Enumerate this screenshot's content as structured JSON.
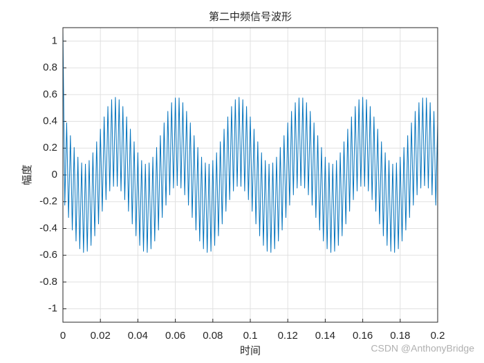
{
  "chart_data": {
    "type": "line",
    "title": "第二中频信号波形",
    "xlabel": "时间",
    "ylabel": "幅度",
    "watermark": "CSDN @AnthonyBridge",
    "grid": true,
    "xlim": [
      0,
      0.2
    ],
    "ylim": [
      -1.1,
      1.1
    ],
    "xticks": [
      0,
      0.02,
      0.04,
      0.06,
      0.08,
      0.1,
      0.12,
      0.14,
      0.16,
      0.18,
      0.2
    ],
    "yticks": [
      -1,
      -0.8,
      -0.6,
      -0.4,
      -0.2,
      0,
      0.2,
      0.4,
      0.6,
      0.8,
      1
    ],
    "x": [
      0,
      0.001,
      0.002,
      0.003,
      0.004,
      0.005,
      0.006,
      0.007,
      0.008,
      0.009,
      0.01,
      0.011,
      0.012,
      0.013,
      0.014,
      0.015,
      0.016,
      0.017,
      0.018,
      0.019,
      0.02,
      0.021,
      0.022,
      0.023,
      0.024,
      0.025,
      0.026,
      0.027,
      0.028,
      0.029,
      0.03,
      0.031,
      0.032,
      0.033,
      0.034,
      0.035,
      0.036,
      0.037,
      0.038,
      0.039,
      0.04,
      0.041,
      0.042,
      0.043,
      0.044,
      0.045,
      0.046,
      0.047,
      0.048,
      0.049,
      0.05,
      0.051,
      0.052,
      0.053,
      0.054,
      0.055,
      0.056,
      0.057,
      0.058,
      0.059,
      0.06,
      0.061,
      0.062,
      0.063,
      0.064,
      0.065,
      0.066,
      0.067,
      0.068,
      0.069,
      0.07,
      0.071,
      0.072,
      0.073,
      0.074,
      0.075,
      0.076,
      0.077,
      0.078,
      0.079,
      0.08,
      0.081,
      0.082,
      0.083,
      0.084,
      0.085,
      0.086,
      0.087,
      0.088,
      0.089,
      0.09,
      0.091,
      0.092,
      0.093,
      0.094,
      0.095,
      0.096,
      0.097,
      0.098,
      0.099,
      0.1,
      0.101,
      0.102,
      0.103,
      0.104,
      0.105,
      0.106,
      0.107,
      0.108,
      0.109,
      0.11,
      0.111,
      0.112,
      0.113,
      0.114,
      0.115,
      0.116,
      0.117,
      0.118,
      0.119,
      0.12,
      0.121,
      0.122,
      0.123,
      0.124,
      0.125,
      0.126,
      0.127,
      0.128,
      0.129,
      0.13,
      0.131,
      0.132,
      0.133,
      0.134,
      0.135,
      0.136,
      0.137,
      0.138,
      0.139,
      0.14,
      0.141,
      0.142,
      0.143,
      0.144,
      0.145,
      0.146,
      0.147,
      0.148,
      0.149,
      0.15,
      0.151,
      0.152,
      0.153,
      0.154,
      0.155,
      0.156,
      0.157,
      0.158,
      0.159,
      0.16,
      0.161,
      0.162,
      0.163,
      0.164,
      0.165,
      0.166,
      0.167,
      0.168,
      0.169,
      0.17,
      0.171,
      0.172,
      0.173,
      0.174,
      0.175,
      0.176,
      0.177,
      0.178,
      0.179,
      0.18,
      0.181,
      0.182,
      0.183,
      0.184,
      0.185,
      0.186,
      0.187,
      0.188,
      0.189,
      0.19,
      0.191,
      0.192,
      0.193,
      0.194,
      0.195,
      0.196,
      0.197,
      0.198,
      0.199,
      0.2
    ],
    "series": [
      {
        "color": "#0072bd",
        "values": [
          1.08,
          -0.226,
          0.389,
          -0.318,
          0.294,
          -0.412,
          0.205,
          -0.494,
          0.133,
          -0.552,
          0.09,
          -0.579,
          0.081,
          -0.57,
          0.108,
          -0.527,
          0.166,
          -0.455,
          0.248,
          -0.366,
          0.342,
          -0.271,
          0.434,
          -0.185,
          0.511,
          -0.12,
          0.562,
          -0.085,
          0.58,
          -0.085,
          0.562,
          -0.12,
          0.511,
          -0.185,
          0.434,
          -0.271,
          0.342,
          -0.366,
          0.248,
          -0.455,
          0.166,
          -0.527,
          0.108,
          -0.57,
          0.081,
          -0.579,
          0.09,
          -0.552,
          0.133,
          -0.494,
          0.205,
          -0.412,
          0.294,
          -0.318,
          0.389,
          -0.226,
          0.475,
          -0.149,
          0.54,
          -0.098,
          0.575,
          -0.08,
          0.575,
          -0.098,
          0.54,
          -0.149,
          0.475,
          -0.226,
          0.389,
          -0.318,
          0.294,
          -0.412,
          0.205,
          -0.494,
          0.133,
          -0.552,
          0.09,
          -0.579,
          0.081,
          -0.57,
          0.108,
          -0.527,
          0.166,
          -0.455,
          0.248,
          -0.366,
          0.342,
          -0.271,
          0.434,
          -0.185,
          0.511,
          -0.12,
          0.562,
          -0.085,
          0.58,
          -0.085,
          0.562,
          -0.12,
          0.511,
          -0.185,
          0.434,
          -0.271,
          0.342,
          -0.366,
          0.248,
          -0.455,
          0.166,
          -0.527,
          0.108,
          -0.57,
          0.081,
          -0.579,
          0.09,
          -0.552,
          0.133,
          -0.494,
          0.205,
          -0.412,
          0.294,
          -0.318,
          0.389,
          -0.226,
          0.475,
          -0.149,
          0.54,
          -0.098,
          0.575,
          -0.08,
          0.575,
          -0.098,
          0.54,
          -0.149,
          0.475,
          -0.226,
          0.389,
          -0.318,
          0.294,
          -0.412,
          0.205,
          -0.494,
          0.133,
          -0.552,
          0.09,
          -0.579,
          0.081,
          -0.57,
          0.108,
          -0.527,
          0.166,
          -0.455,
          0.248,
          -0.366,
          0.342,
          -0.271,
          0.434,
          -0.185,
          0.511,
          -0.12,
          0.562,
          -0.085,
          0.58,
          -0.085,
          0.562,
          -0.12,
          0.511,
          -0.185,
          0.434,
          -0.271,
          0.342,
          -0.366,
          0.248,
          -0.455,
          0.166,
          -0.527,
          0.108,
          -0.57,
          0.081,
          -0.579,
          0.09,
          -0.552,
          0.133,
          -0.494,
          0.205,
          -0.412,
          0.294,
          -0.318,
          0.389,
          -0.226,
          0.475,
          -0.149,
          0.54,
          -0.098,
          0.575,
          -0.08,
          0.575,
          -0.098,
          0.54,
          -0.149,
          0.475,
          -0.226,
          0.389
        ]
      }
    ]
  }
}
